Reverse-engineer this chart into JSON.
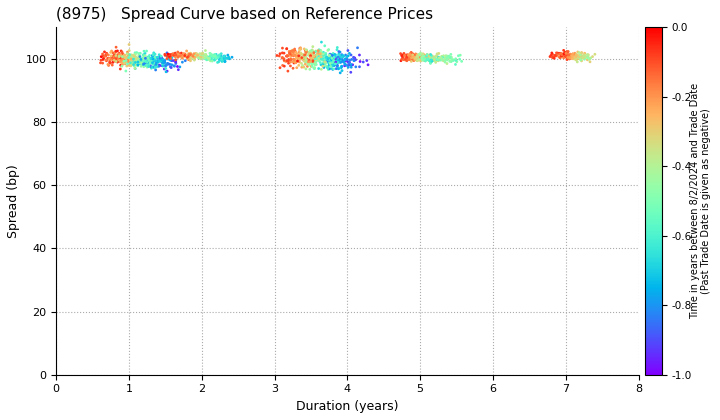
{
  "title": "(8975)   Spread Curve based on Reference Prices",
  "xlabel": "Duration (years)",
  "ylabel": "Spread (bp)",
  "colorbar_label": "Time in years between 8/2/2024 and Trade Date\n(Past Trade Date is given as negative)",
  "xlim": [
    0,
    8
  ],
  "ylim": [
    0,
    110
  ],
  "yticks": [
    0,
    20,
    40,
    60,
    80,
    100
  ],
  "xticks": [
    0,
    1,
    2,
    3,
    4,
    5,
    6,
    7,
    8
  ],
  "cmap": "rainbow",
  "clim": [
    -1.0,
    0.0
  ],
  "figsize": [
    7.2,
    4.2
  ],
  "dpi": 100
}
